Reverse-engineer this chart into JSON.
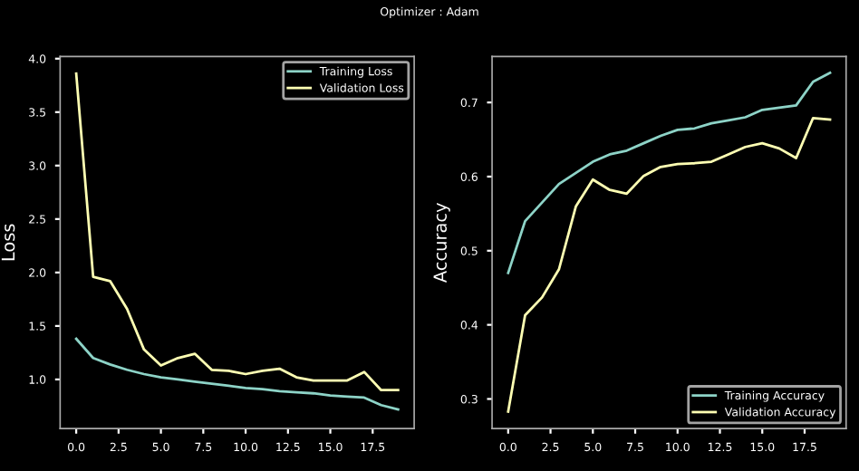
{
  "chart_data": [
    {
      "type": "line",
      "title": "Optimizer : Adam",
      "ylabel": "Loss",
      "x": [
        0,
        1,
        2,
        3,
        4,
        5,
        6,
        7,
        8,
        9,
        10,
        11,
        12,
        13,
        14,
        15,
        16,
        17,
        18,
        19
      ],
      "series": [
        {
          "name": "Training Loss",
          "color": "#8dd3c7",
          "values": [
            1.38,
            1.2,
            1.14,
            1.09,
            1.05,
            1.02,
            1.0,
            0.98,
            0.96,
            0.94,
            0.92,
            0.91,
            0.89,
            0.88,
            0.87,
            0.85,
            0.84,
            0.83,
            0.76,
            0.72
          ]
        },
        {
          "name": "Validation Loss",
          "color": "#feffb3",
          "values": [
            3.86,
            1.96,
            1.92,
            1.66,
            1.28,
            1.13,
            1.2,
            1.24,
            1.09,
            1.08,
            1.05,
            1.08,
            1.1,
            1.02,
            0.99,
            0.99,
            0.99,
            1.07,
            0.9,
            0.9
          ]
        }
      ],
      "xlim": [
        -0.95,
        19.95
      ],
      "ylim": [
        0.54,
        4.02
      ],
      "xticks": [
        {
          "value": 0,
          "label": "0.0"
        },
        2.5,
        {
          "value": 5,
          "label": "5.0"
        },
        7.5,
        {
          "value": 10,
          "label": "10.0"
        },
        12.5,
        {
          "value": 15,
          "label": "15.0"
        },
        17.5
      ],
      "yticks": [
        {
          "value": 1,
          "label": "1.0"
        },
        1.5,
        {
          "value": 2,
          "label": "2.0"
        },
        2.5,
        {
          "value": 3,
          "label": "3.0"
        },
        3.5,
        {
          "value": 4,
          "label": "4.0"
        }
      ],
      "legend": "top right",
      "grid": false
    },
    {
      "type": "line",
      "ylabel": "Accuracy",
      "x": [
        0,
        1,
        2,
        3,
        4,
        5,
        6,
        7,
        8,
        9,
        10,
        11,
        12,
        13,
        14,
        15,
        16,
        17,
        18,
        19
      ],
      "series": [
        {
          "name": "Training Accuracy",
          "color": "#8dd3c7",
          "values": [
            0.47,
            0.54,
            0.565,
            0.59,
            0.605,
            0.62,
            0.63,
            0.635,
            0.645,
            0.655,
            0.663,
            0.665,
            0.672,
            0.676,
            0.68,
            0.69,
            0.693,
            0.696,
            0.728,
            0.74
          ]
        },
        {
          "name": "Validation Accuracy",
          "color": "#feffb3",
          "values": [
            0.283,
            0.413,
            0.437,
            0.475,
            0.56,
            0.596,
            0.582,
            0.577,
            0.601,
            0.613,
            0.617,
            0.618,
            0.62,
            0.63,
            0.64,
            0.645,
            0.638,
            0.625,
            0.679,
            0.677
          ]
        }
      ],
      "xlim": [
        -0.95,
        19.95
      ],
      "ylim": [
        0.26,
        0.762
      ],
      "xticks": [
        {
          "value": 0,
          "label": "0.0"
        },
        2.5,
        {
          "value": 5,
          "label": "5.0"
        },
        7.5,
        {
          "value": 10,
          "label": "10.0"
        },
        12.5,
        {
          "value": 15,
          "label": "15.0"
        },
        17.5
      ],
      "yticks": [
        0.3,
        0.4,
        0.5,
        0.6,
        0.7
      ],
      "legend": "bottom right",
      "grid": false
    }
  ]
}
